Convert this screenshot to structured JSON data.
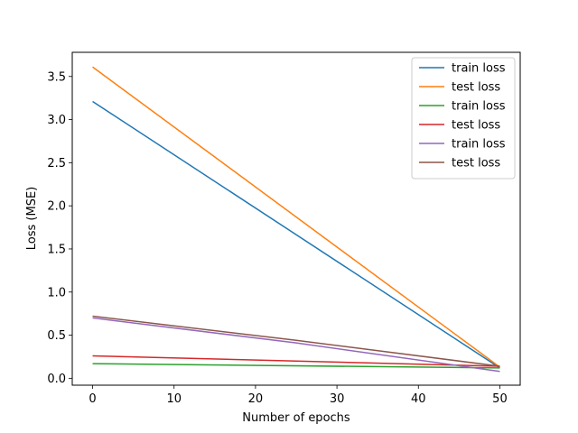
{
  "chart_data": {
    "type": "line",
    "xlabel": "Number of epochs",
    "ylabel": "Loss (MSE)",
    "xlim": [
      -2.5,
      52.5
    ],
    "ylim": [
      -0.08,
      3.78
    ],
    "xticks": [
      0,
      10,
      20,
      30,
      40,
      50
    ],
    "yticks": [
      0.0,
      0.5,
      1.0,
      1.5,
      2.0,
      2.5,
      3.0,
      3.5
    ],
    "ytick_labels": [
      "0.0",
      "0.5",
      "1.0",
      "1.5",
      "2.0",
      "2.5",
      "3.0",
      "3.5"
    ],
    "grid": false,
    "legend_position": "top-right",
    "series": [
      {
        "name": "train loss",
        "color": "#1f77b4",
        "x": [
          0,
          50
        ],
        "y": [
          3.21,
          0.12
        ]
      },
      {
        "name": "test loss",
        "color": "#ff7f0e",
        "x": [
          0,
          50
        ],
        "y": [
          3.61,
          0.13
        ]
      },
      {
        "name": "train loss",
        "color": "#2ca02c",
        "x": [
          0,
          50
        ],
        "y": [
          0.17,
          0.12
        ]
      },
      {
        "name": "test loss",
        "color": "#d62728",
        "x": [
          0,
          50
        ],
        "y": [
          0.26,
          0.14
        ]
      },
      {
        "name": "train loss",
        "color": "#9467bd",
        "x": [
          0,
          25,
          50
        ],
        "y": [
          0.7,
          0.41,
          0.08
        ]
      },
      {
        "name": "test loss",
        "color": "#8c564b",
        "x": [
          0,
          25,
          50
        ],
        "y": [
          0.72,
          0.44,
          0.14
        ]
      }
    ]
  }
}
